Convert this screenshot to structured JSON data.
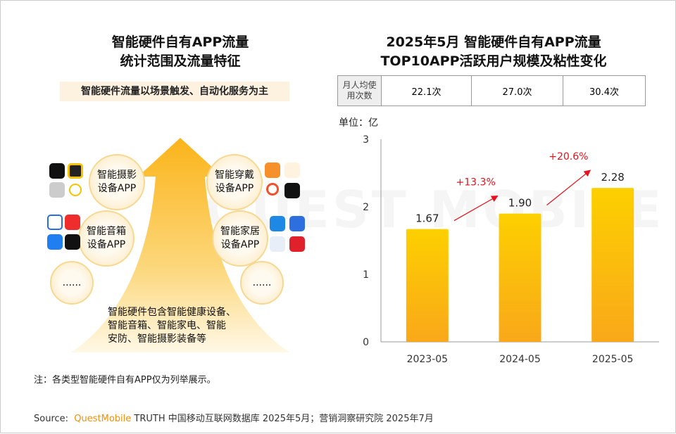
{
  "left": {
    "title_line1": "智能硬件自有APP流量",
    "title_line2": "统计范围及流量特征",
    "subtitle": "智能硬件流量以场景触发、自动化服务为主",
    "categories": [
      {
        "line1": "智能摄影",
        "line2": "设备APP"
      },
      {
        "line1": "智能穿戴",
        "line2": "设备APP"
      },
      {
        "line1": "智能音箱",
        "line2": "设备APP"
      },
      {
        "line1": "智能家居",
        "line2": "设备APP"
      }
    ],
    "more_left": "......",
    "more_right": "......",
    "description_lines": [
      "智能硬件包含智能健康设备、",
      "智能音箱、智能家电、智能",
      "安防、智能摄影装备等"
    ]
  },
  "right": {
    "title_line1": "2025年5月 智能硬件自有APP流量",
    "title_line2": "TOP10APP活跃用户规模及粘性变化",
    "table_header": "月人均使用次数",
    "table_values": [
      "22.1次",
      "27.0次",
      "30.4次"
    ]
  },
  "watermark": "QUEST MOBILE",
  "chart_data": {
    "type": "bar",
    "unit_label": "单位：亿",
    "categories": [
      "2023-05",
      "2024-05",
      "2025-05"
    ],
    "values": [
      1.67,
      1.9,
      2.28
    ],
    "value_labels": [
      "1.67",
      "1.90",
      "2.28"
    ],
    "growth_labels": [
      "+13.3%",
      "+20.6%"
    ],
    "ylim": [
      0,
      3
    ],
    "yticks": [
      "0",
      "1",
      "2",
      "3"
    ],
    "bar_color": "#fbbf10",
    "growth_color": "#e8101a"
  },
  "footer": {
    "note": "注：各类型智能硬件自有APP仅为列举展示。",
    "source_prefix": "Source:",
    "source_brand": "QuestMobile",
    "source_rest": "TRUTH 中国移动互联网数据库 2025年5月；营销洞察研究院 2025年7月"
  }
}
